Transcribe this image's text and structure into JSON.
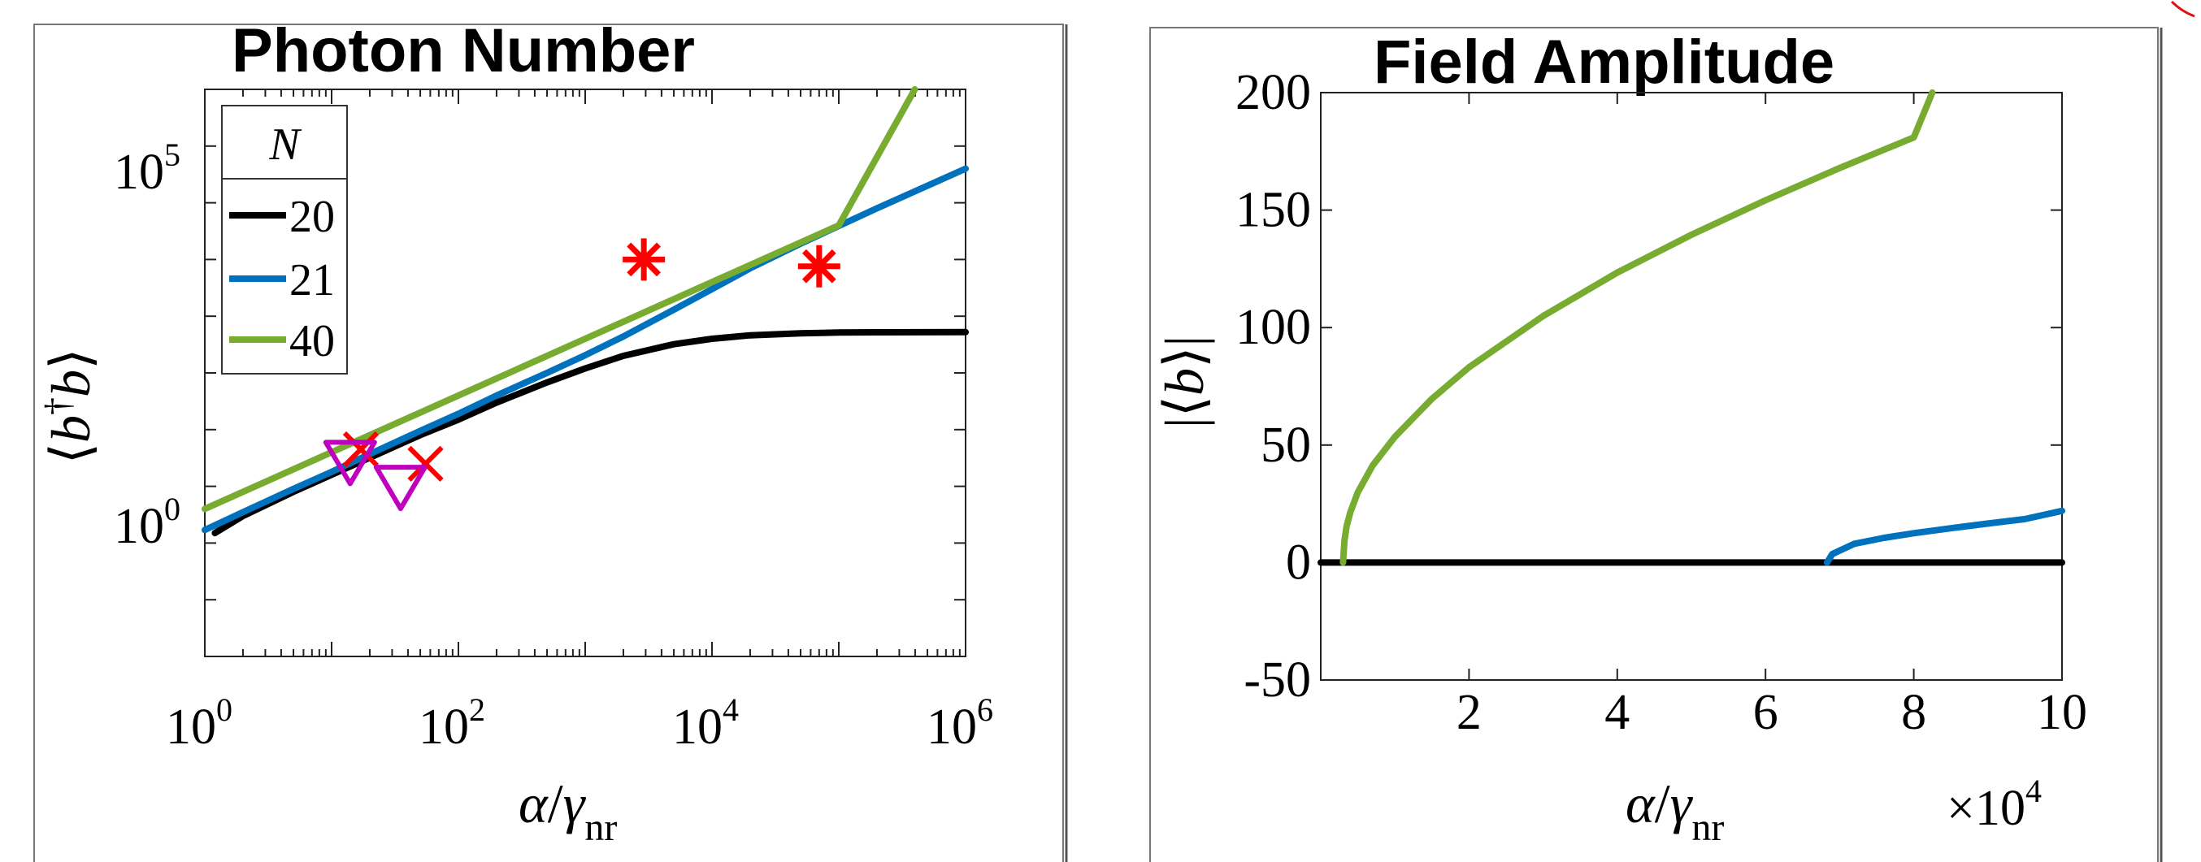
{
  "colors": {
    "n20": "#000000",
    "n21": "#0072BD",
    "n40": "#77AC30",
    "star": "#FF0000",
    "cross": "#FF0000",
    "triangle": "#BF00BF"
  },
  "chart_data": [
    {
      "type": "line",
      "title": "Photon Number",
      "xlabel": "α/γnr",
      "ylabel": "⟨b†b⟩",
      "xscale": "log",
      "yscale": "log",
      "xlim": [
        1,
        1000000
      ],
      "ylim": [
        0.001,
        10000000
      ],
      "xticks": [
        "10^0",
        "10^2",
        "10^4",
        "10^6"
      ],
      "yticks": [
        "10^0",
        "10^5"
      ],
      "legend_title": "N",
      "legend_position": "top-left",
      "series": [
        {
          "name": "20",
          "color_key": "n20",
          "x": [
            1.2,
            2,
            5,
            10,
            20,
            50,
            100,
            200,
            500,
            1000,
            2000,
            5000,
            10000,
            20000,
            50000,
            100000,
            200000,
            500000,
            1000000
          ],
          "y": [
            0.15,
            0.3,
            0.8,
            1.6,
            3.2,
            8,
            15,
            30,
            68,
            120,
            200,
            320,
            400,
            460,
            500,
            515,
            520,
            522,
            523
          ]
        },
        {
          "name": "21",
          "color_key": "n21",
          "x": [
            1,
            2,
            5,
            10,
            20,
            50,
            100,
            200,
            500,
            1000,
            2000,
            5000,
            10000,
            20000,
            50000,
            100000,
            200000,
            500000,
            1000000
          ],
          "y": [
            0.17,
            0.35,
            0.9,
            1.8,
            3.7,
            9.5,
            19,
            40,
            100,
            205,
            440,
            1300,
            3000,
            7000,
            19000,
            39000,
            80000,
            200000,
            400000
          ]
        },
        {
          "name": "40",
          "color_key": "n40",
          "x": [
            1,
            10,
            100,
            1000,
            10000,
            100000,
            1000000
          ],
          "y": [
            0.4,
            4,
            40,
            400,
            4000,
            40000,
            400000000
          ]
        }
      ],
      "markers": [
        {
          "shape": "star",
          "x": 2900,
          "y": 10000
        },
        {
          "shape": "star",
          "x": 70000,
          "y": 7600
        },
        {
          "shape": "cross",
          "x": 17,
          "y": 4.5
        },
        {
          "shape": "cross",
          "x": 55,
          "y": 2.5
        },
        {
          "shape": "triangle",
          "x": 14,
          "y": 3.3
        },
        {
          "shape": "triangle",
          "x": 35,
          "y": 1.2
        }
      ]
    },
    {
      "type": "line",
      "title": "Field Amplitude",
      "xlabel": "α/γnr",
      "ylabel": "|⟨b⟩|",
      "x_multiplier": "×10^4",
      "xlim": [
        0,
        10
      ],
      "ylim": [
        -50,
        200
      ],
      "xticks": [
        "2",
        "4",
        "6",
        "8",
        "10"
      ],
      "yticks": [
        "-50",
        "0",
        "50",
        "100",
        "150",
        "200"
      ],
      "series": [
        {
          "name": "20",
          "color_key": "n20",
          "x": [
            0,
            10
          ],
          "y": [
            0,
            0
          ]
        },
        {
          "name": "21",
          "color_key": "n21",
          "x": [
            6.83,
            6.9,
            7.2,
            7.6,
            8.0,
            8.5,
            9.0,
            9.5,
            10.0
          ],
          "y": [
            0,
            3.6,
            8.0,
            10.5,
            12.5,
            14.6,
            16.6,
            18.5,
            22
          ]
        },
        {
          "name": "40",
          "color_key": "n40",
          "x": [
            0.3,
            0.32,
            0.35,
            0.4,
            0.5,
            0.7,
            1.0,
            1.5,
            2.0,
            3.0,
            4.0,
            5.0,
            6.0,
            7.0,
            8.0,
            8.25
          ],
          "y": [
            0,
            9.5,
            15.6,
            21.5,
            29.9,
            41.3,
            53.5,
            69.7,
            83.1,
            104.9,
            123.4,
            139.5,
            154.2,
            167.9,
            180.9,
            200
          ]
        }
      ]
    }
  ]
}
